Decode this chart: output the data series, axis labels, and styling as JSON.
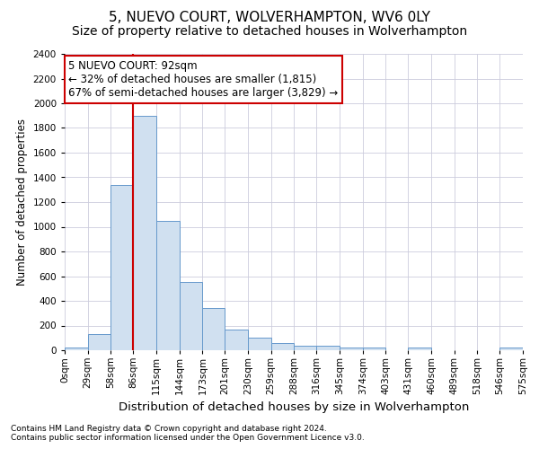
{
  "title": "5, NUEVO COURT, WOLVERHAMPTON, WV6 0LY",
  "subtitle": "Size of property relative to detached houses in Wolverhampton",
  "xlabel": "Distribution of detached houses by size in Wolverhampton",
  "ylabel": "Number of detached properties",
  "footer1": "Contains HM Land Registry data © Crown copyright and database right 2024.",
  "footer2": "Contains public sector information licensed under the Open Government Licence v3.0.",
  "annotation_title": "5 NUEVO COURT: 92sqm",
  "annotation_line1": "← 32% of detached houses are smaller (1,815)",
  "annotation_line2": "67% of semi-detached houses are larger (3,829) →",
  "property_sqm": 92,
  "bar_edges": [
    0,
    29,
    58,
    86,
    115,
    144,
    173,
    201,
    230,
    259,
    288,
    316,
    345,
    374,
    403,
    431,
    460,
    489,
    518,
    546,
    575
  ],
  "bar_heights": [
    20,
    130,
    1340,
    1900,
    1050,
    550,
    340,
    165,
    105,
    60,
    35,
    35,
    25,
    20,
    0,
    20,
    0,
    0,
    0,
    20
  ],
  "bar_color": "#d0e0f0",
  "bar_edgecolor": "#6699cc",
  "vline_color": "#cc0000",
  "vline_x": 86,
  "ylim": [
    0,
    2400
  ],
  "yticks": [
    0,
    200,
    400,
    600,
    800,
    1000,
    1200,
    1400,
    1600,
    1800,
    2000,
    2200,
    2400
  ],
  "background_color": "#ffffff",
  "axes_background": "#ffffff",
  "grid_color": "#ccccdd",
  "annotation_box_facecolor": "#ffffff",
  "annotation_box_edgecolor": "#cc0000",
  "title_fontsize": 11,
  "subtitle_fontsize": 10,
  "xlabel_fontsize": 9.5,
  "ylabel_fontsize": 8.5,
  "tick_fontsize": 7.5,
  "footer_fontsize": 6.5,
  "tick_labels": [
    "0sqm",
    "29sqm",
    "58sqm",
    "86sqm",
    "115sqm",
    "144sqm",
    "173sqm",
    "201sqm",
    "230sqm",
    "259sqm",
    "288sqm",
    "316sqm",
    "345sqm",
    "374sqm",
    "403sqm",
    "431sqm",
    "460sqm",
    "489sqm",
    "518sqm",
    "546sqm",
    "575sqm"
  ]
}
